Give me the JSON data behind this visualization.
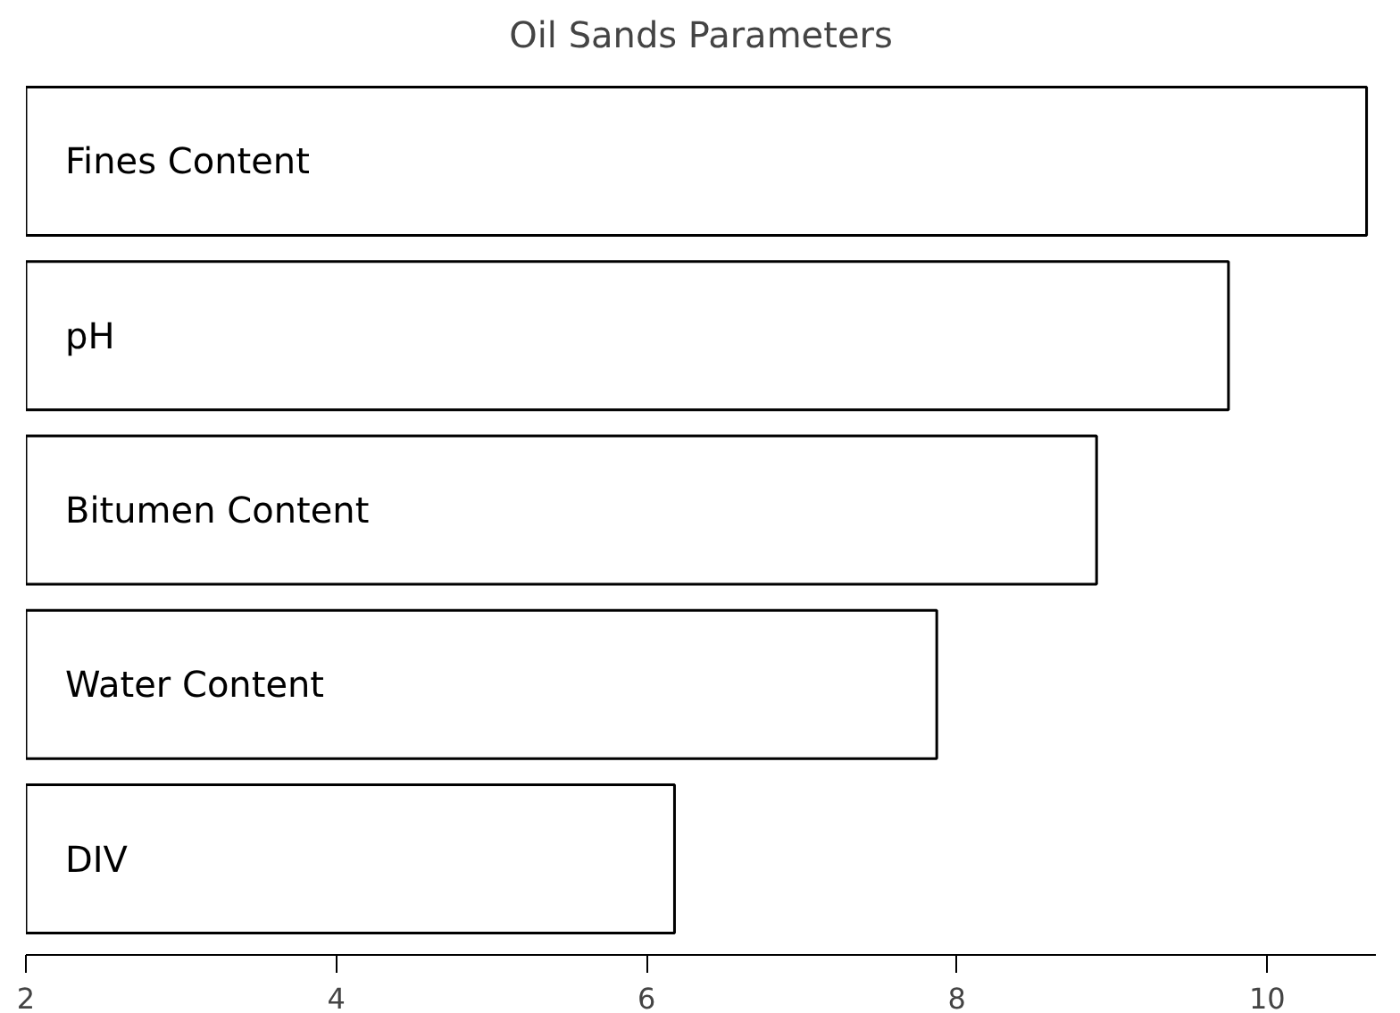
{
  "chart_data": {
    "type": "bar",
    "orientation": "horizontal",
    "title": "Oil Sands Parameters",
    "categories": [
      "Fines Content",
      "pH",
      "Bitumen Content",
      "Water Content",
      "DIV"
    ],
    "values": [
      10.64,
      9.75,
      8.9,
      7.87,
      6.18
    ],
    "color": "#ffffff",
    "xlim": [
      2,
      10.7
    ],
    "xticks": [
      2,
      4,
      6,
      8,
      10
    ],
    "grid": false,
    "tick_labels": "x"
  }
}
